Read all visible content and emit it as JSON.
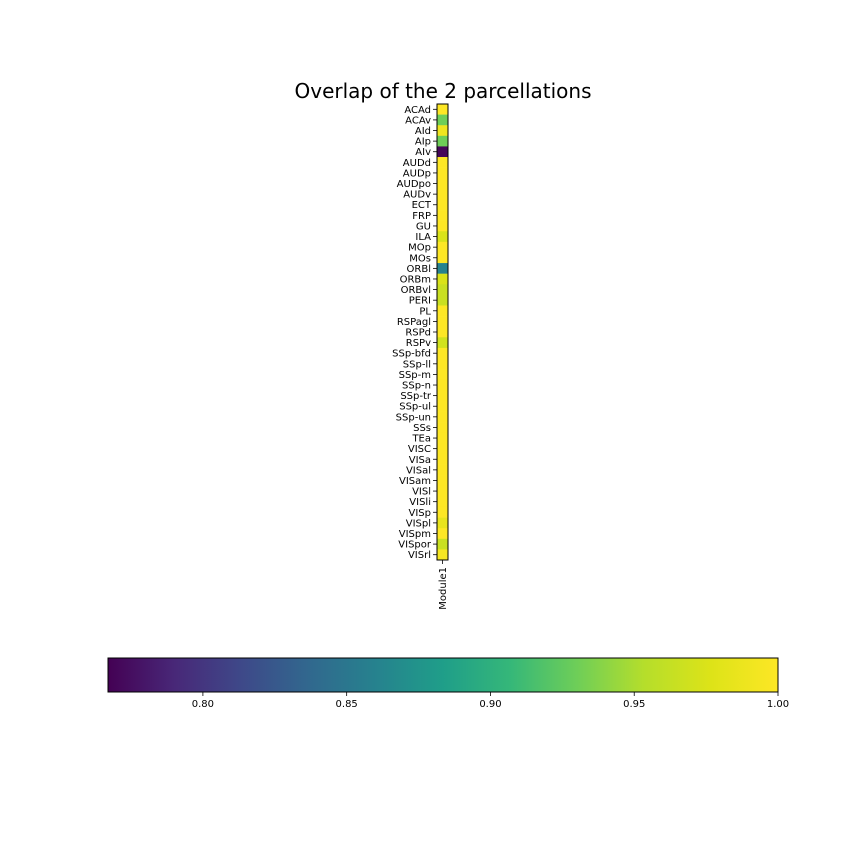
{
  "chart_data": {
    "type": "heatmap",
    "title": "Overlap of the 2 parcellations",
    "columns": [
      "Module1"
    ],
    "rows": [
      "ACAd",
      "ACAv",
      "AId",
      "AIp",
      "AIv",
      "AUDd",
      "AUDp",
      "AUDpo",
      "AUDv",
      "ECT",
      "FRP",
      "GU",
      "ILA",
      "MOp",
      "MOs",
      "ORBl",
      "ORBm",
      "ORBvl",
      "PERI",
      "PL",
      "RSPagl",
      "RSPd",
      "RSPv",
      "SSp-bfd",
      "SSp-ll",
      "SSp-m",
      "SSp-n",
      "SSp-tr",
      "SSp-ul",
      "SSp-un",
      "SSs",
      "TEa",
      "VISC",
      "VISa",
      "VISal",
      "VISam",
      "VISl",
      "VISli",
      "VISp",
      "VISpl",
      "VISpm",
      "VISpor",
      "VISrl"
    ],
    "values": [
      1.0,
      0.93,
      0.99,
      0.93,
      0.77,
      1.0,
      1.0,
      1.0,
      1.0,
      1.0,
      1.0,
      1.0,
      0.975,
      1.0,
      1.0,
      0.86,
      0.975,
      0.965,
      0.965,
      1.0,
      1.0,
      1.0,
      0.97,
      1.0,
      1.0,
      1.0,
      1.0,
      1.0,
      1.0,
      1.0,
      1.0,
      1.0,
      1.0,
      1.0,
      1.0,
      1.0,
      1.0,
      1.0,
      1.0,
      0.985,
      1.0,
      0.965,
      0.995
    ],
    "colorbar": {
      "colormap": "viridis",
      "orientation": "horizontal",
      "range": [
        0.767,
        1.0
      ],
      "ticks": [
        0.8,
        0.85,
        0.9,
        0.95,
        1.0
      ],
      "tick_labels": [
        "0.80",
        "0.85",
        "0.90",
        "0.95",
        "1.00"
      ]
    }
  }
}
